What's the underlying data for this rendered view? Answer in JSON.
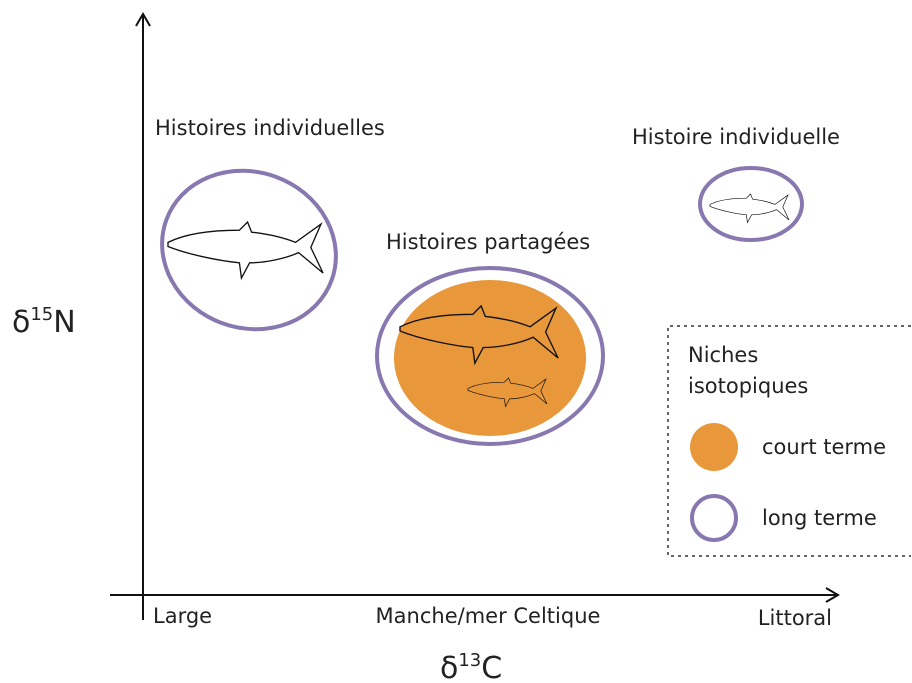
{
  "y_axis": {
    "symbol": "δ",
    "superscript": "15",
    "element": "N"
  },
  "x_axis": {
    "symbol": "δ",
    "superscript": "13",
    "element": "C",
    "categories": [
      "Large",
      "Manche/mer Celtique",
      "Littoral"
    ]
  },
  "groups": [
    {
      "label": "Histoires individuelles"
    },
    {
      "label": "Histoires partagées"
    },
    {
      "label": "Histoire individuelle"
    }
  ],
  "legend": {
    "title": [
      "Niches",
      "isotopiques"
    ],
    "items": [
      "court terme",
      "long terme"
    ]
  }
}
